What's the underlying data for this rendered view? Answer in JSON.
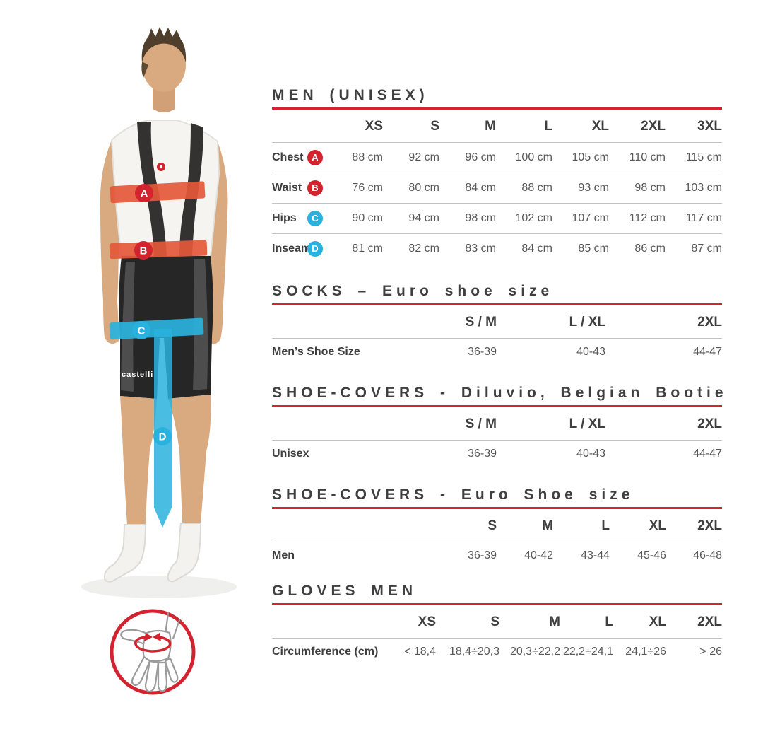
{
  "colors": {
    "accent_red": "#d2232e",
    "cyan": "#29b2dd",
    "band_red": "#e4573a"
  },
  "figure": {
    "markers": {
      "a": "A",
      "b": "B",
      "c": "C",
      "d": "D"
    },
    "brand": "castelli"
  },
  "tables": [
    {
      "title": "MEN (UNISEX)",
      "columns": [
        "XS",
        "S",
        "M",
        "L",
        "XL",
        "2XL",
        "3XL"
      ],
      "rows": [
        {
          "label": "Chest",
          "marker": "A",
          "marker_color": "red",
          "values": [
            "88 cm",
            "92 cm",
            "96 cm",
            "100 cm",
            "105 cm",
            "110 cm",
            "115 cm"
          ]
        },
        {
          "label": "Waist",
          "marker": "B",
          "marker_color": "red",
          "values": [
            "76 cm",
            "80 cm",
            "84 cm",
            "88 cm",
            "93 cm",
            "98 cm",
            "103 cm"
          ]
        },
        {
          "label": "Hips",
          "marker": "C",
          "marker_color": "cyan",
          "values": [
            "90 cm",
            "94 cm",
            "98 cm",
            "102 cm",
            "107 cm",
            "112 cm",
            "117 cm"
          ]
        },
        {
          "label": "Inseam",
          "marker": "D",
          "marker_color": "cyan",
          "values": [
            "81 cm",
            "82 cm",
            "83 cm",
            "84 cm",
            "85 cm",
            "86 cm",
            "87 cm"
          ]
        }
      ]
    },
    {
      "title": "SOCKS – Euro shoe size",
      "columns": [
        "S / M",
        "L / XL",
        "2XL"
      ],
      "rows": [
        {
          "label": "Men’s Shoe Size",
          "values": [
            "36-39",
            "40-43",
            "44-47"
          ]
        }
      ]
    },
    {
      "title": "SHOE-COVERS - Diluvio, Belgian Bootie",
      "columns": [
        "S / M",
        "L / XL",
        "2XL"
      ],
      "rows": [
        {
          "label": "Unisex",
          "values": [
            "36-39",
            "40-43",
            "44-47"
          ]
        }
      ]
    },
    {
      "title": "SHOE-COVERS - Euro Shoe size",
      "columns": [
        "S",
        "M",
        "L",
        "XL",
        "2XL"
      ],
      "rows": [
        {
          "label": "Men",
          "values": [
            "36-39",
            "40-42",
            "43-44",
            "45-46",
            "46-48"
          ]
        }
      ]
    },
    {
      "title": "GLOVES MEN",
      "columns": [
        "XS",
        "S",
        "M",
        "L",
        "XL",
        "2XL"
      ],
      "rows": [
        {
          "label": "Circumference (cm)",
          "values": [
            "< 18,4",
            "18,4÷20,3",
            "20,3÷22,2",
            "22,2÷24,1",
            "24,1÷26",
            "> 26"
          ]
        }
      ]
    }
  ]
}
